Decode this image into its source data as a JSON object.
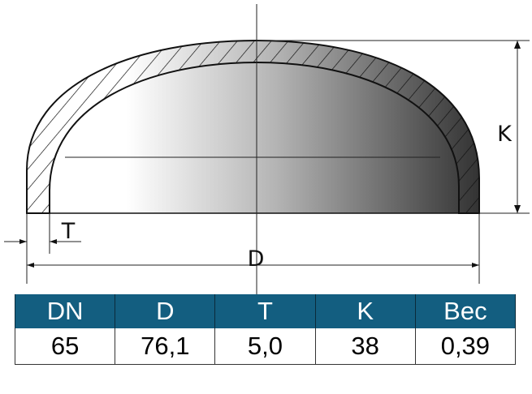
{
  "diagram": {
    "labels": {
      "diameter": "D",
      "thickness": "T",
      "height": "K"
    }
  },
  "table": {
    "header_color": "#135e80",
    "columns": [
      "DN",
      "D",
      "T",
      "K",
      "Вес"
    ],
    "rows": [
      [
        "65",
        "76,1",
        "5,0",
        "38",
        "0,39"
      ]
    ]
  }
}
